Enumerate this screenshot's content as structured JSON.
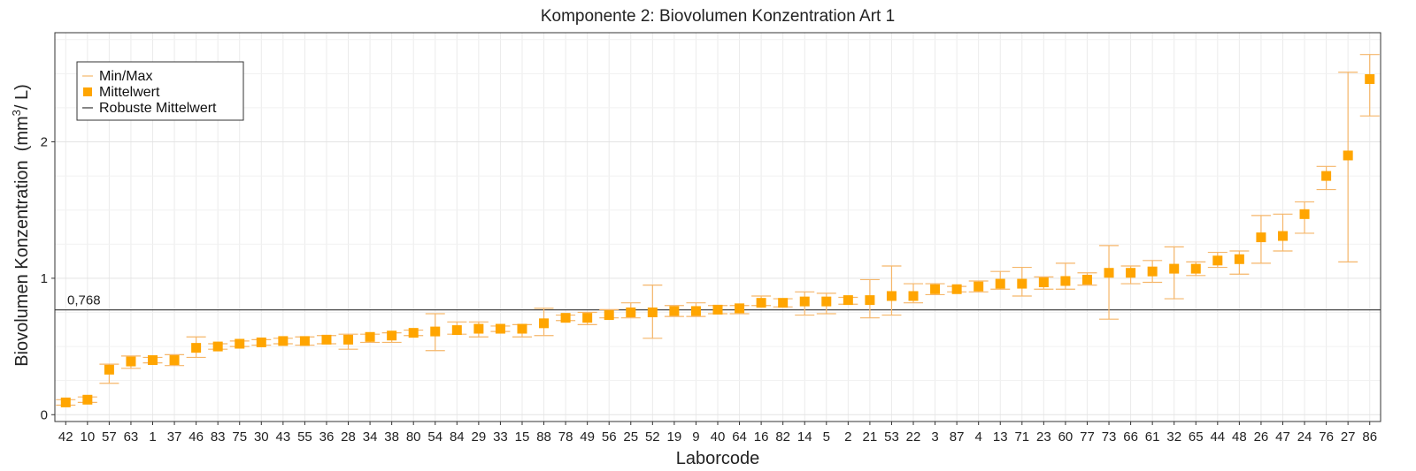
{
  "chart_data": {
    "type": "scatter",
    "title": "Komponente 2: Biovolumen Konzentration Art 1",
    "xlabel": "Laborcode",
    "ylabel": "Biovolumen Konzentration",
    "ylabel_unit_pre": "(mm",
    "ylabel_unit_sup": "3",
    "ylabel_unit_post": "/ L)",
    "ylim": [
      -0.05,
      2.8
    ],
    "yticks": [
      0,
      1,
      2
    ],
    "grid": true,
    "legend_placement": "top-left",
    "legend": {
      "minmax": "Min/Max",
      "mean": "Mittelwert",
      "robust": "Robuste Mittelwert"
    },
    "colors": {
      "points": "#FFA500",
      "errorbars": "#F5B66A",
      "reference": "#333333"
    },
    "reference": {
      "value": 0.768,
      "label": "0,768"
    },
    "categories": [
      "42",
      "10",
      "57",
      "63",
      "1",
      "37",
      "46",
      "83",
      "75",
      "30",
      "43",
      "55",
      "36",
      "28",
      "34",
      "38",
      "80",
      "54",
      "84",
      "29",
      "33",
      "15",
      "88",
      "78",
      "49",
      "56",
      "25",
      "52",
      "19",
      "9",
      "40",
      "64",
      "16",
      "82",
      "14",
      "5",
      "2",
      "21",
      "53",
      "22",
      "3",
      "87",
      "4",
      "13",
      "71",
      "23",
      "60",
      "77",
      "73",
      "66",
      "61",
      "32",
      "65",
      "44",
      "48",
      "26",
      "47",
      "24",
      "76",
      "27",
      "86"
    ],
    "series": [
      {
        "name": "Mittelwert",
        "values": [
          0.09,
          0.11,
          0.33,
          0.39,
          0.4,
          0.4,
          0.49,
          0.5,
          0.52,
          0.53,
          0.54,
          0.54,
          0.55,
          0.55,
          0.57,
          0.58,
          0.6,
          0.61,
          0.62,
          0.63,
          0.63,
          0.63,
          0.67,
          0.71,
          0.71,
          0.73,
          0.75,
          0.75,
          0.76,
          0.76,
          0.77,
          0.78,
          0.82,
          0.82,
          0.83,
          0.83,
          0.84,
          0.84,
          0.87,
          0.87,
          0.92,
          0.92,
          0.94,
          0.96,
          0.96,
          0.97,
          0.98,
          0.99,
          1.04,
          1.04,
          1.05,
          1.07,
          1.07,
          1.13,
          1.14,
          1.3,
          1.31,
          1.47,
          1.75,
          1.9,
          2.46
        ],
        "min": [
          0.07,
          0.09,
          0.23,
          0.34,
          0.38,
          0.36,
          0.42,
          0.48,
          0.5,
          0.51,
          0.52,
          0.51,
          0.52,
          0.48,
          0.53,
          0.53,
          0.58,
          0.47,
          0.59,
          0.57,
          0.61,
          0.57,
          0.58,
          0.69,
          0.66,
          0.71,
          0.71,
          0.56,
          0.72,
          0.72,
          0.74,
          0.74,
          0.8,
          0.79,
          0.73,
          0.74,
          0.81,
          0.71,
          0.73,
          0.82,
          0.88,
          0.9,
          0.9,
          0.92,
          0.87,
          0.92,
          0.92,
          0.95,
          0.7,
          0.96,
          0.97,
          0.85,
          1.02,
          1.08,
          1.03,
          1.11,
          1.2,
          1.33,
          1.65,
          1.12,
          2.19
        ],
        "max": [
          0.11,
          0.13,
          0.37,
          0.43,
          0.42,
          0.44,
          0.57,
          0.52,
          0.54,
          0.55,
          0.56,
          0.57,
          0.58,
          0.59,
          0.59,
          0.6,
          0.62,
          0.74,
          0.68,
          0.68,
          0.65,
          0.66,
          0.78,
          0.73,
          0.75,
          0.77,
          0.82,
          0.95,
          0.8,
          0.82,
          0.8,
          0.8,
          0.87,
          0.85,
          0.9,
          0.89,
          0.86,
          0.99,
          1.09,
          0.96,
          0.96,
          0.94,
          0.98,
          1.05,
          1.08,
          1.01,
          1.11,
          1.04,
          1.24,
          1.09,
          1.13,
          1.23,
          1.12,
          1.19,
          1.2,
          1.46,
          1.47,
          1.56,
          1.82,
          2.51,
          2.64
        ]
      }
    ]
  }
}
